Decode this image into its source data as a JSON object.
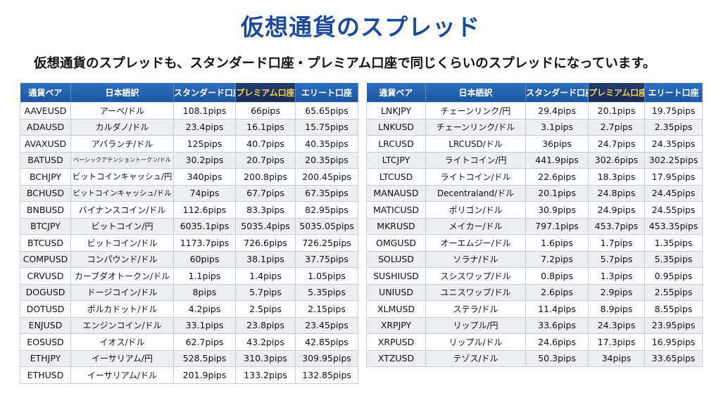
{
  "title": "仮想通貨のスプレッド",
  "subtitle": "仮想通貨のスプレッドも、スタンダード口座・プレミアム口座で同じくらいのスプレッドになっています。",
  "colors": {
    "header": "#1b56a0",
    "premium_header": "#182c55",
    "premium_text": "#f2d35a",
    "title": "#1a4a9c"
  },
  "columns": [
    "通貨ペア",
    "日本語訳",
    "スタンダード口座",
    "プレミアム口座",
    "エリート口座"
  ],
  "left_table": [
    [
      "AAVEUSD",
      "アーベ/ドル",
      "108.1pips",
      "66pips",
      "65.65pips"
    ],
    [
      "ADAUSD",
      "カルダノ/ドル",
      "23.4pips",
      "16.1pips",
      "15.75pips"
    ],
    [
      "AVAXUSD",
      "アバランチ/ドル",
      "125pips",
      "40.7pips",
      "40.35pips"
    ],
    [
      "BATUSD",
      "ベーシックアテンショントークン/ドル",
      "30.2pips",
      "20.7pips",
      "20.35pips"
    ],
    [
      "BCHJPY",
      "ビットコインキャッシュ/円",
      "340pips",
      "200.8pips",
      "200.45pips"
    ],
    [
      "BCHUSD",
      "ビットコインキャッシュ/ドル",
      "74pips",
      "67.7pips",
      "67.35pips"
    ],
    [
      "BNBUSD",
      "バイナンスコイン/ドル",
      "112.6pips",
      "83.3pips",
      "82.95pips"
    ],
    [
      "BTCJPY",
      "ビットコイン/円",
      "6035.1pips",
      "5035.4pips",
      "5035.05pips"
    ],
    [
      "BTCUSD",
      "ビットコイン/ドル",
      "1173.7pips",
      "726.6pips",
      "726.25pips"
    ],
    [
      "COMPUSD",
      "コンパウンド/ドル",
      "60pips",
      "38.1pips",
      "37.75pips"
    ],
    [
      "CRVUSD",
      "カーブダオトークン/ドル",
      "1.1pips",
      "1.4pips",
      "1.05pips"
    ],
    [
      "DOGUSD",
      "ドージコイン/ドル",
      "8pips",
      "5.7pips",
      "5.35pips"
    ],
    [
      "DOTUSD",
      "ポルカドット/ドル",
      "4.2pips",
      "2.5pips",
      "2.15pips"
    ],
    [
      "ENJUSD",
      "エンジンコイン/ドル",
      "33.1pips",
      "23.8pips",
      "23.45pips"
    ],
    [
      "EOSUSD",
      "イオス/ドル",
      "62.7pips",
      "43.2pips",
      "42.85pips"
    ],
    [
      "ETHJPY",
      "イーサリアム/円",
      "528.5pips",
      "310.3pips",
      "309.95pips"
    ],
    [
      "ETHUSD",
      "イーサリアム/ドル",
      "201.9pips",
      "133.2pips",
      "132.85pips"
    ]
  ],
  "right_table": [
    [
      "LNKJPY",
      "チェーンリンク/円",
      "29.4pips",
      "20.1pips",
      "19.75pips"
    ],
    [
      "LNKUSD",
      "チェーンリンク/ドル",
      "3.1pips",
      "2.7pips",
      "2.35pips"
    ],
    [
      "LRCUSD",
      "LRCUSD/ドル",
      "36pips",
      "24.7pips",
      "24.35pips"
    ],
    [
      "LTCJPY",
      "ライトコイン/円",
      "441.9pips",
      "302.6pips",
      "302.25pips"
    ],
    [
      "LTCUSD",
      "ライトコイン/ドル",
      "22.6pips",
      "18.3pips",
      "17.95pips"
    ],
    [
      "MANAUSD",
      "Decentraland/ドル",
      "20.1pips",
      "24.8pips",
      "24.45pips"
    ],
    [
      "MATICUSD",
      "ポリゴン/ドル",
      "30.9pips",
      "24.9pips",
      "24.55pips"
    ],
    [
      "MKRUSD",
      "メイカー/ドル",
      "797.1pips",
      "453.7pips",
      "453.35pips"
    ],
    [
      "OMGUSD",
      "オーエムジー/ドル",
      "1.6pips",
      "1.7pips",
      "1.35pips"
    ],
    [
      "SOLUSD",
      "ソラナ/ドル",
      "7.2pips",
      "5.7pips",
      "5.35pips"
    ],
    [
      "SUSHIUSD",
      "スシスワップ/ドル",
      "0.8pips",
      "1.3pips",
      "0.95pips"
    ],
    [
      "UNIUSD",
      "ユニスワップ/ドル",
      "2.6pips",
      "2.9pips",
      "2.55pips"
    ],
    [
      "XLMUSD",
      "ステラ/ドル",
      "11.4pips",
      "8.9pips",
      "8.55pips"
    ],
    [
      "XRPJPY",
      "リップル/円",
      "33.6pips",
      "24.3pips",
      "23.95pips"
    ],
    [
      "XRPUSD",
      "リップル/ドル",
      "24.6pips",
      "17.3pips",
      "16.95pips"
    ],
    [
      "XTZUSD",
      "テゾス/ドル",
      "50.3pips",
      "34pips",
      "33.65pips"
    ]
  ]
}
